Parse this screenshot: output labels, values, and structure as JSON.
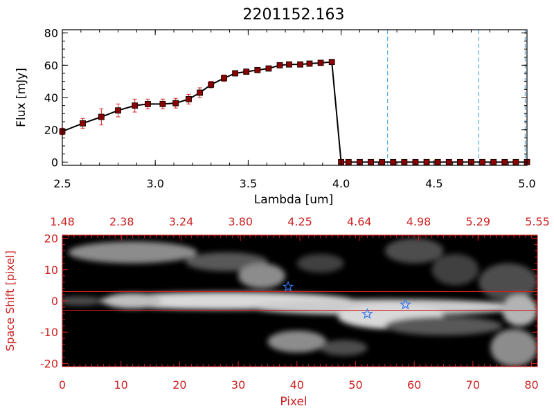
{
  "title": "2201152.163",
  "colors": {
    "black": "#000000",
    "red_axis": "#cc2222",
    "marker": "#8b0000",
    "errorbar": "#dd2222",
    "cyan_line": "#3399dd",
    "star": "#3377ee",
    "image_bg": "#000000"
  },
  "chart_data": [
    {
      "type": "line",
      "title": "2201152.163",
      "xlabel": "Lambda [um]",
      "ylabel": "Flux [mJy]",
      "xlim": [
        2.5,
        5.0
      ],
      "ylim": [
        -2,
        82
      ],
      "xticks": [
        "2.5",
        "3.0",
        "3.5",
        "4.0",
        "4.5",
        "5.0"
      ],
      "yticks": [
        "0",
        "20",
        "40",
        "60",
        "80"
      ],
      "grid": false,
      "series": [
        {
          "x": [
            2.5,
            2.61,
            2.71,
            2.8,
            2.89,
            2.96,
            3.04,
            3.11,
            3.18,
            3.24,
            3.3,
            3.37,
            3.43,
            3.49,
            3.55,
            3.61,
            3.67,
            3.72,
            3.78,
            3.83,
            3.89,
            3.95,
            4.0,
            4.04,
            4.1,
            4.16,
            4.22,
            4.28,
            4.34,
            4.4,
            4.46,
            4.52,
            4.58,
            4.64,
            4.7,
            4.76,
            4.82,
            4.88,
            4.94,
            5.0
          ],
          "y": [
            19,
            24,
            28,
            32,
            35,
            36,
            36,
            36.5,
            39,
            43,
            48,
            52,
            55,
            56,
            57,
            58,
            60,
            60.5,
            60.5,
            61,
            61.5,
            62,
            0,
            0,
            0,
            0,
            0,
            0,
            0,
            0,
            0,
            0,
            0,
            0,
            0,
            0,
            0,
            0,
            0,
            0
          ],
          "yerr": [
            2,
            3,
            5,
            4,
            4,
            3,
            3,
            3,
            3,
            3,
            2,
            2,
            1,
            1,
            1,
            1,
            1,
            1,
            1,
            1,
            1,
            1,
            0,
            0,
            0,
            0,
            0,
            0,
            0,
            0,
            0,
            0,
            0,
            0,
            0,
            0,
            0,
            0,
            0,
            0
          ]
        }
      ],
      "vlines": [
        4.25,
        4.74,
        4.99
      ]
    },
    {
      "type": "heatmap",
      "xlabel": "Pixel",
      "ylabel": "Space Shift [pixel]",
      "xlim": [
        0,
        81
      ],
      "ylim": [
        -21,
        21
      ],
      "xticks": [
        "0",
        "10",
        "20",
        "30",
        "40",
        "50",
        "60",
        "70",
        "80"
      ],
      "yticks": [
        "-20",
        "-10",
        "0",
        "10",
        "20"
      ],
      "top_axis_ticks": [
        "1.48",
        "2.38",
        "3.24",
        "3.80",
        "4.25",
        "4.64",
        "4.98",
        "5.29",
        "5.55"
      ],
      "hlines": [
        3,
        -3
      ],
      "stars": [
        {
          "x": 38.5,
          "y": 4.5
        },
        {
          "x": 52,
          "y": -4.2
        },
        {
          "x": 58.5,
          "y": -1.2
        }
      ],
      "blobs": [
        {
          "cx": 12,
          "cy": 15.5,
          "rx": 11,
          "ry": 3.5,
          "v": 0.55
        },
        {
          "cx": 28,
          "cy": 12.5,
          "rx": 7,
          "ry": 3,
          "v": 0.35
        },
        {
          "cx": 34,
          "cy": 8,
          "rx": 4,
          "ry": 4,
          "v": 0.55
        },
        {
          "cx": 44,
          "cy": 12,
          "rx": 4,
          "ry": 3,
          "v": 0.25
        },
        {
          "cx": 60,
          "cy": 16,
          "rx": 5,
          "ry": 4,
          "v": 0.3
        },
        {
          "cx": 67,
          "cy": 10,
          "rx": 4,
          "ry": 5,
          "v": 0.25
        },
        {
          "cx": 76,
          "cy": 6,
          "rx": 5,
          "ry": 6,
          "v": 0.3
        },
        {
          "cx": 28,
          "cy": 0,
          "rx": 22,
          "ry": 2.8,
          "v": 0.85
        },
        {
          "cx": 12,
          "cy": 0,
          "rx": 5,
          "ry": 2.5,
          "v": 0.75
        },
        {
          "cx": 3,
          "cy": 0,
          "rx": 4,
          "ry": 1.5,
          "v": 0.3
        },
        {
          "cx": 55,
          "cy": -2,
          "rx": 23,
          "ry": 2.6,
          "v": 0.8
        },
        {
          "cx": 56,
          "cy": -5,
          "rx": 9,
          "ry": 4,
          "v": 0.85
        },
        {
          "cx": 40,
          "cy": -13,
          "rx": 5,
          "ry": 3.5,
          "v": 0.55
        },
        {
          "cx": 48,
          "cy": -15,
          "rx": 4,
          "ry": 2.5,
          "v": 0.3
        },
        {
          "cx": 77,
          "cy": -15,
          "rx": 4,
          "ry": 6,
          "v": 0.55
        },
        {
          "cx": 65,
          "cy": -8,
          "rx": 10,
          "ry": 3,
          "v": 0.35
        },
        {
          "cx": 78,
          "cy": -3,
          "rx": 3,
          "ry": 5,
          "v": 0.7
        }
      ]
    }
  ]
}
